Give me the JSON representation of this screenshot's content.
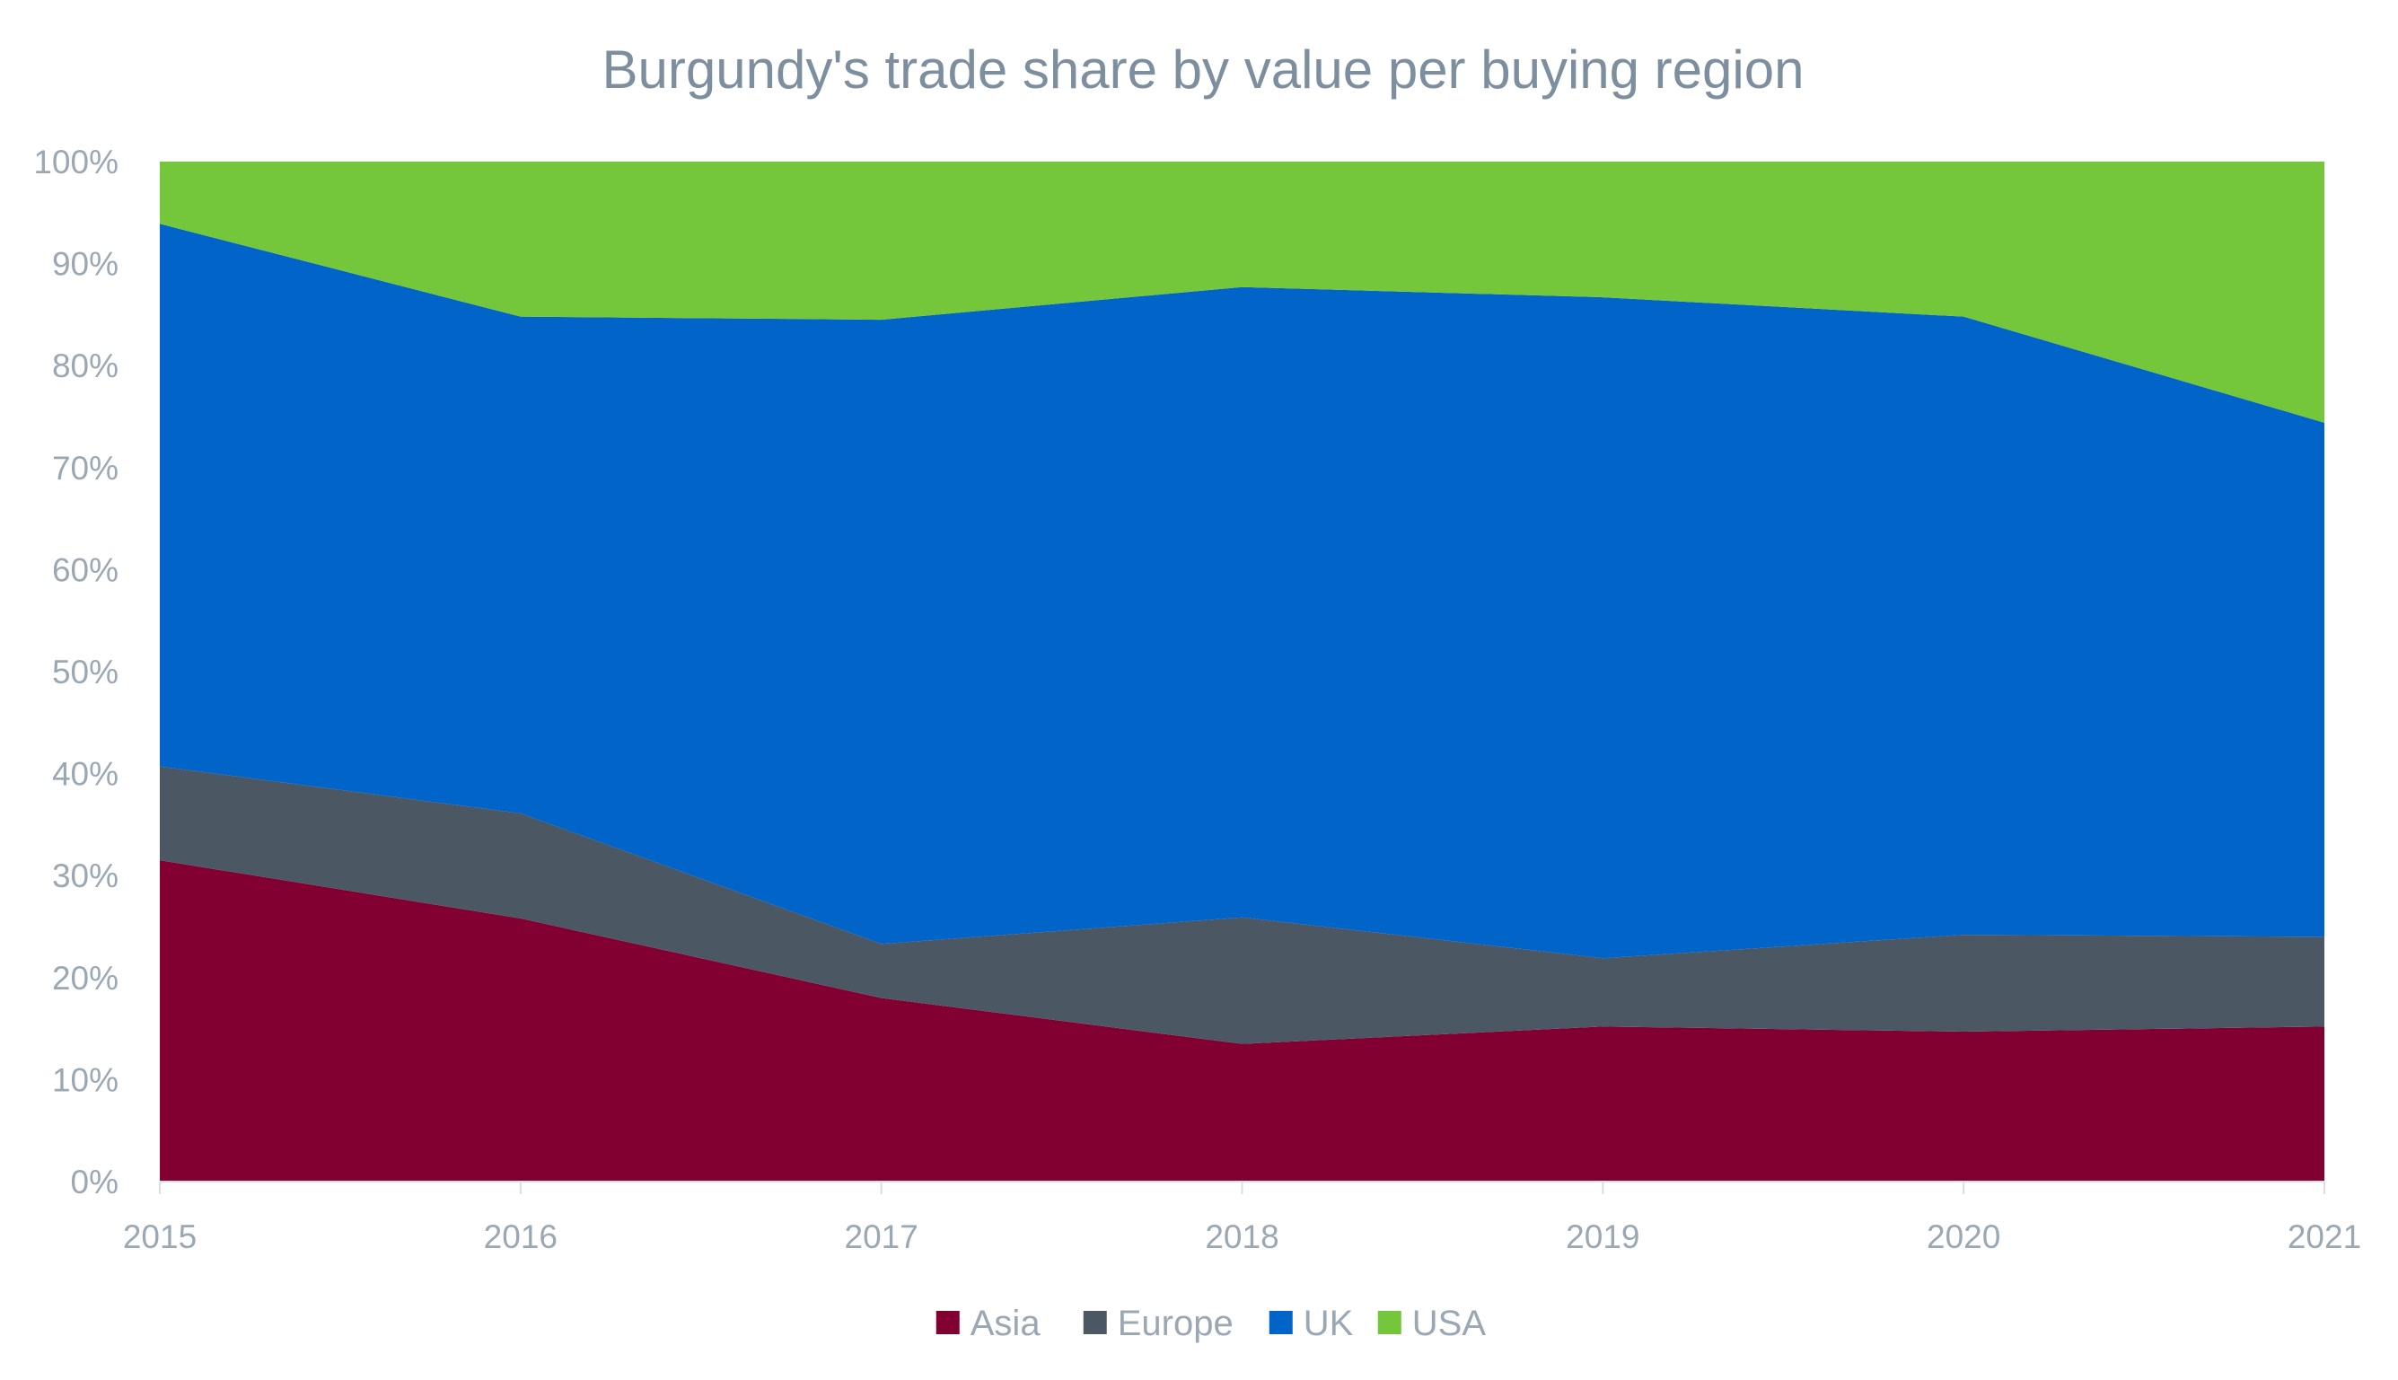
{
  "chart_data": {
    "type": "area",
    "stacked": true,
    "title": "Burgundy's trade share by value per buying region",
    "xlabel": "",
    "ylabel": "",
    "x": [
      "2015",
      "2016",
      "2017",
      "2018",
      "2019",
      "2020",
      "2021"
    ],
    "ylim": [
      0,
      100
    ],
    "y_ticks": [
      "0%",
      "10%",
      "20%",
      "30%",
      "40%",
      "50%",
      "60%",
      "70%",
      "80%",
      "90%",
      "100%"
    ],
    "grid": false,
    "legend_position": "bottom",
    "series": [
      {
        "name": "Asia",
        "color": "#820031",
        "values": [
          31.5,
          25.8,
          18.0,
          13.5,
          15.2,
          14.7,
          15.2
        ]
      },
      {
        "name": "Europe",
        "color": "#4b5863",
        "values": [
          9.2,
          10.3,
          5.3,
          12.4,
          6.7,
          9.5,
          8.8
        ]
      },
      {
        "name": "UK",
        "color": "#0064c8",
        "values": [
          53.2,
          48.7,
          61.2,
          61.8,
          64.8,
          60.6,
          50.4
        ]
      },
      {
        "name": "USA",
        "color": "#74c63a",
        "values": [
          6.1,
          15.2,
          15.5,
          12.3,
          13.3,
          15.2,
          25.6
        ]
      }
    ]
  }
}
